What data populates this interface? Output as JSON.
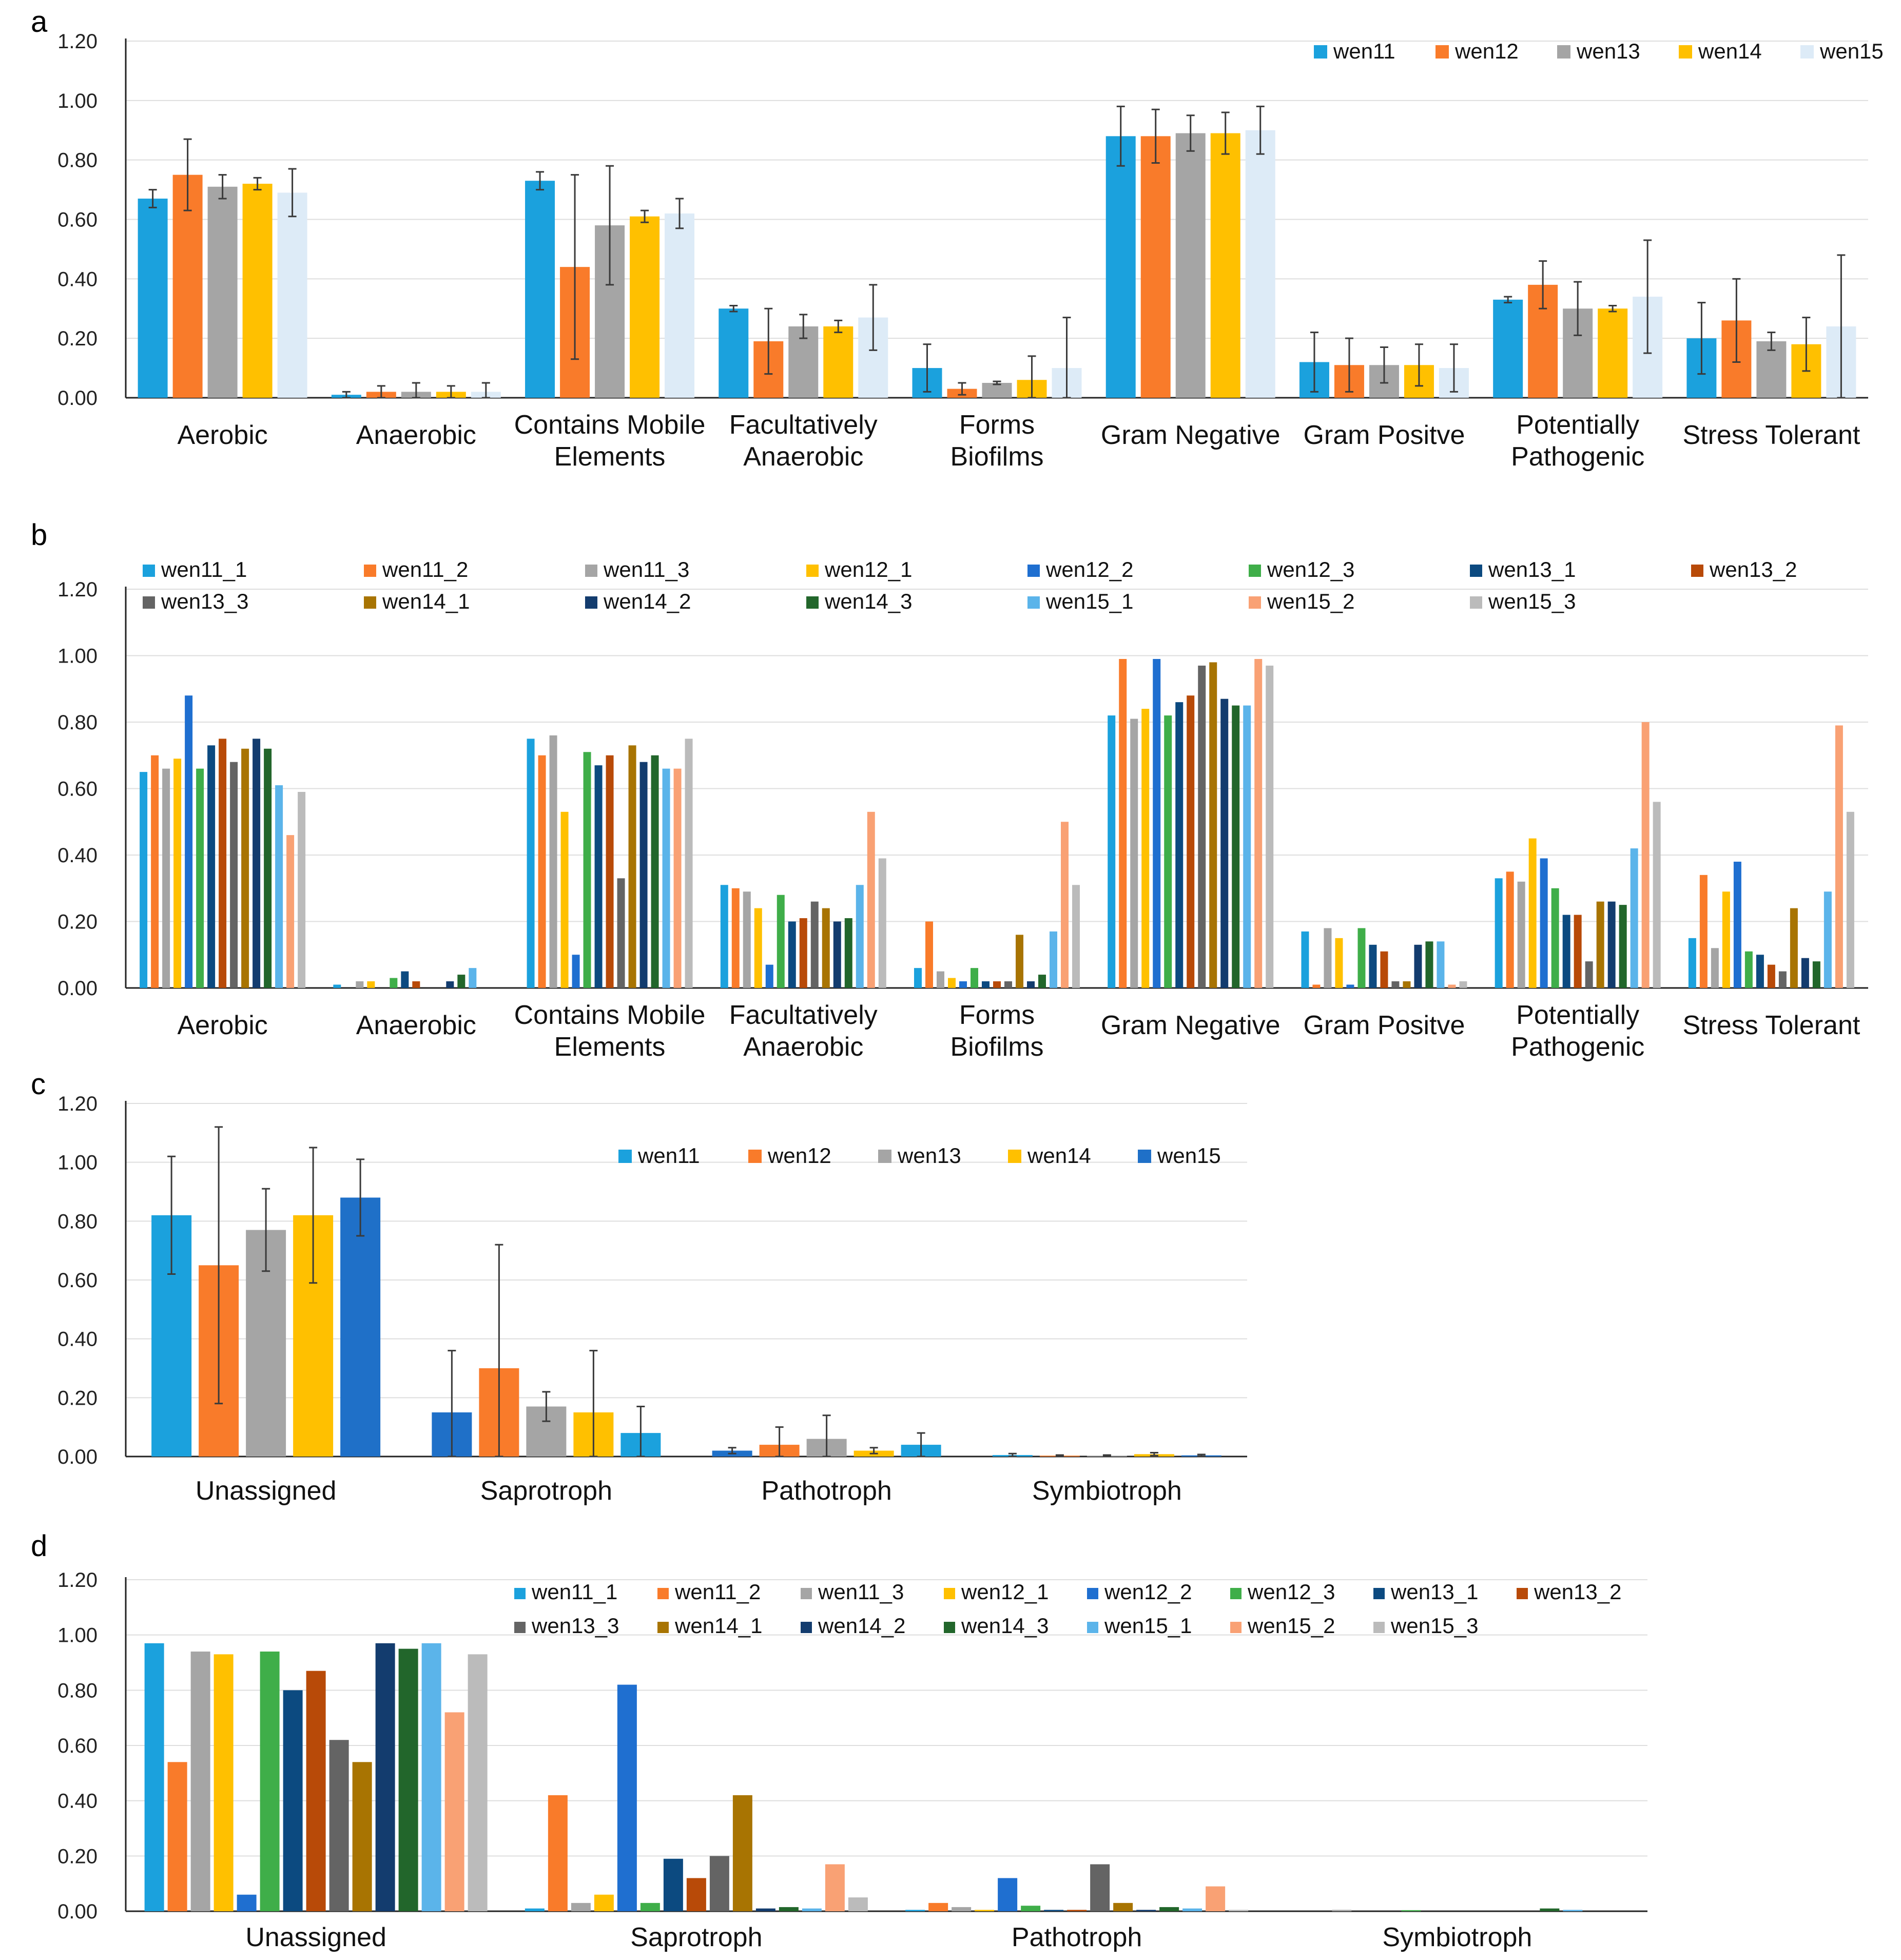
{
  "colors": {
    "wen11": "#1BA1DD",
    "wen12": "#F97B2A",
    "wen13": "#A5A5A5",
    "wen14": "#FFC000",
    "wen15_a": "#DDEBF7",
    "wen15_c": "#1F70C8",
    "wen11_1": "#1BA1DD",
    "wen11_2": "#F97B2A",
    "wen11_3": "#A5A5A5",
    "wen12_1": "#FFC000",
    "wen12_2": "#1F6FD0",
    "wen12_3": "#3FAE49",
    "wen13_1": "#0C4A80",
    "wen13_2": "#B84A08",
    "wen13_3": "#646464",
    "wen14_1": "#A87402",
    "wen14_2": "#133C6E",
    "wen14_3": "#22662B",
    "wen15_1": "#5BB4EA",
    "wen15_2": "#F9A174",
    "wen15_3": "#BBBBBB"
  },
  "chart_data": [
    {
      "panel": "a",
      "type": "bar",
      "ylim": [
        0,
        1.2
      ],
      "ticks": [
        "0.00",
        "0.20",
        "0.40",
        "0.60",
        "0.80",
        "1.00",
        "1.20"
      ],
      "categories": [
        "Aerobic",
        "Anaerobic",
        "Contains Mobile Elements",
        "Facultatively Anaerobic",
        "Forms Biofilms",
        "Gram Negative",
        "Gram Positve",
        "Potentially Pathogenic",
        "Stress Tolerant"
      ],
      "series": [
        {
          "name": "wen11",
          "color": "wen11",
          "values": [
            0.67,
            0.01,
            0.73,
            0.3,
            0.1,
            0.88,
            0.12,
            0.33,
            0.2
          ],
          "errors": [
            0.03,
            0.01,
            0.03,
            0.01,
            0.08,
            0.1,
            0.1,
            0.01,
            0.12
          ]
        },
        {
          "name": "wen12",
          "color": "wen12",
          "values": [
            0.75,
            0.02,
            0.44,
            0.19,
            0.03,
            0.88,
            0.11,
            0.38,
            0.26
          ],
          "errors": [
            0.12,
            0.02,
            0.31,
            0.11,
            0.02,
            0.09,
            0.09,
            0.08,
            0.14
          ]
        },
        {
          "name": "wen13",
          "color": "wen13",
          "values": [
            0.71,
            0.02,
            0.58,
            0.24,
            0.05,
            0.89,
            0.11,
            0.3,
            0.19
          ],
          "errors": [
            0.04,
            0.03,
            0.2,
            0.04,
            0.005,
            0.06,
            0.06,
            0.09,
            0.03
          ]
        },
        {
          "name": "wen14",
          "color": "wen14",
          "values": [
            0.72,
            0.02,
            0.61,
            0.24,
            0.06,
            0.89,
            0.11,
            0.3,
            0.18
          ],
          "errors": [
            0.02,
            0.02,
            0.02,
            0.02,
            0.08,
            0.07,
            0.07,
            0.01,
            0.09
          ]
        },
        {
          "name": "wen15",
          "color": "wen15_a",
          "values": [
            0.69,
            0.02,
            0.62,
            0.27,
            0.1,
            0.9,
            0.1,
            0.34,
            0.24
          ],
          "errors": [
            0.08,
            0.03,
            0.05,
            0.11,
            0.17,
            0.08,
            0.08,
            0.19,
            0.24
          ]
        }
      ]
    },
    {
      "panel": "b",
      "type": "bar",
      "ylim": [
        0,
        1.2
      ],
      "ticks": [
        "0.00",
        "0.20",
        "0.40",
        "0.60",
        "0.80",
        "1.00",
        "1.20"
      ],
      "categories": [
        "Aerobic",
        "Anaerobic",
        "Contains Mobile Elements",
        "Facultatively Anaerobic",
        "Forms Biofilms",
        "Gram Negative",
        "Gram Positve",
        "Potentially Pathogenic",
        "Stress Tolerant"
      ],
      "series": [
        {
          "name": "wen11_1",
          "color": "wen11_1",
          "values": [
            0.65,
            0.01,
            0.75,
            0.31,
            0.06,
            0.82,
            0.17,
            0.33,
            0.15
          ]
        },
        {
          "name": "wen11_2",
          "color": "wen11_2",
          "values": [
            0.7,
            0.0,
            0.7,
            0.3,
            0.2,
            0.99,
            0.01,
            0.35,
            0.34
          ]
        },
        {
          "name": "wen11_3",
          "color": "wen11_3",
          "values": [
            0.66,
            0.02,
            0.76,
            0.29,
            0.05,
            0.81,
            0.18,
            0.32,
            0.12
          ]
        },
        {
          "name": "wen12_1",
          "color": "wen12_1",
          "values": [
            0.69,
            0.02,
            0.53,
            0.24,
            0.03,
            0.84,
            0.15,
            0.45,
            0.29
          ]
        },
        {
          "name": "wen12_2",
          "color": "wen12_2",
          "values": [
            0.88,
            0.0,
            0.1,
            0.07,
            0.02,
            0.99,
            0.01,
            0.39,
            0.38
          ]
        },
        {
          "name": "wen12_3",
          "color": "wen12_3",
          "values": [
            0.66,
            0.03,
            0.71,
            0.28,
            0.06,
            0.82,
            0.18,
            0.3,
            0.11
          ]
        },
        {
          "name": "wen13_1",
          "color": "wen13_1",
          "values": [
            0.73,
            0.05,
            0.67,
            0.2,
            0.02,
            0.86,
            0.13,
            0.22,
            0.1
          ]
        },
        {
          "name": "wen13_2",
          "color": "wen13_2",
          "values": [
            0.75,
            0.02,
            0.7,
            0.21,
            0.02,
            0.88,
            0.11,
            0.22,
            0.07
          ]
        },
        {
          "name": "wen13_3",
          "color": "wen13_3",
          "values": [
            0.68,
            0.0,
            0.33,
            0.26,
            0.02,
            0.97,
            0.02,
            0.08,
            0.05
          ]
        },
        {
          "name": "wen14_1",
          "color": "wen14_1",
          "values": [
            0.72,
            0.0,
            0.73,
            0.24,
            0.16,
            0.98,
            0.02,
            0.26,
            0.24
          ]
        },
        {
          "name": "wen14_2",
          "color": "wen14_2",
          "values": [
            0.75,
            0.02,
            0.68,
            0.2,
            0.02,
            0.87,
            0.13,
            0.26,
            0.09
          ]
        },
        {
          "name": "wen14_3",
          "color": "wen14_3",
          "values": [
            0.72,
            0.04,
            0.7,
            0.21,
            0.04,
            0.85,
            0.14,
            0.25,
            0.08
          ]
        },
        {
          "name": "wen15_1",
          "color": "wen15_1",
          "values": [
            0.61,
            0.06,
            0.66,
            0.31,
            0.17,
            0.85,
            0.14,
            0.42,
            0.29
          ]
        },
        {
          "name": "wen15_2",
          "color": "wen15_2",
          "values": [
            0.46,
            0.0,
            0.66,
            0.53,
            0.5,
            0.99,
            0.01,
            0.8,
            0.79
          ]
        },
        {
          "name": "wen15_3",
          "color": "wen15_3",
          "values": [
            0.59,
            0.0,
            0.75,
            0.39,
            0.31,
            0.97,
            0.02,
            0.56,
            0.53
          ]
        }
      ]
    },
    {
      "panel": "c",
      "type": "bar",
      "ylim": [
        0,
        1.2
      ],
      "ticks": [
        "0.00",
        "0.20",
        "0.40",
        "0.60",
        "0.80",
        "1.00",
        "1.20"
      ],
      "categories": [
        "Unassigned",
        "Saprotroph",
        "Pathotroph",
        "Symbiotroph"
      ],
      "series": [
        {
          "name": "wen11",
          "color": "wen11",
          "colors": [
            "wen11",
            "wen15_c",
            "wen15_c",
            "wen11"
          ],
          "values": [
            0.82,
            0.15,
            0.02,
            0.005
          ],
          "errors": [
            0.2,
            0.21,
            0.01,
            0.005
          ]
        },
        {
          "name": "wen12",
          "color": "wen12",
          "values": [
            0.65,
            0.3,
            0.04,
            0.003
          ],
          "errors": [
            0.47,
            0.42,
            0.06,
            0.002
          ]
        },
        {
          "name": "wen13",
          "color": "wen13",
          "values": [
            0.77,
            0.17,
            0.06,
            0.003
          ],
          "errors": [
            0.14,
            0.05,
            0.08,
            0.002
          ]
        },
        {
          "name": "wen14",
          "color": "wen14",
          "values": [
            0.82,
            0.15,
            0.02,
            0.008
          ],
          "errors": [
            0.23,
            0.21,
            0.01,
            0.005
          ]
        },
        {
          "name": "wen15",
          "color": "wen15_c",
          "colors": [
            "wen15_c",
            "wen11",
            "wen11",
            "wen15_c"
          ],
          "values": [
            0.88,
            0.08,
            0.04,
            0.004
          ],
          "errors": [
            0.13,
            0.09,
            0.04,
            0.003
          ]
        }
      ]
    },
    {
      "panel": "d",
      "type": "bar",
      "ylim": [
        0,
        1.2
      ],
      "ticks": [
        "0.00",
        "0.20",
        "0.40",
        "0.60",
        "0.80",
        "1.00",
        "1.20"
      ],
      "categories": [
        "Unassigned",
        "Saprotroph",
        "Pathotroph",
        "Symbiotroph"
      ],
      "series": [
        {
          "name": "wen11_1",
          "color": "wen11_1",
          "values": [
            0.97,
            0.01,
            0.005,
            0.0
          ]
        },
        {
          "name": "wen11_2",
          "color": "wen11_2",
          "values": [
            0.54,
            0.42,
            0.03,
            0.0
          ]
        },
        {
          "name": "wen11_3",
          "color": "wen11_3",
          "values": [
            0.94,
            0.03,
            0.015,
            0.005
          ]
        },
        {
          "name": "wen12_1",
          "color": "wen12_1",
          "values": [
            0.93,
            0.06,
            0.005,
            0.0
          ]
        },
        {
          "name": "wen12_2",
          "color": "wen12_2",
          "values": [
            0.06,
            0.82,
            0.12,
            0.0
          ]
        },
        {
          "name": "wen12_3",
          "color": "wen12_3",
          "values": [
            0.94,
            0.03,
            0.02,
            0.004
          ]
        },
        {
          "name": "wen13_1",
          "color": "wen13_1",
          "values": [
            0.8,
            0.19,
            0.005,
            0.0
          ]
        },
        {
          "name": "wen13_2",
          "color": "wen13_2",
          "values": [
            0.87,
            0.12,
            0.005,
            0.0
          ]
        },
        {
          "name": "wen13_3",
          "color": "wen13_3",
          "values": [
            0.62,
            0.2,
            0.17,
            0.0
          ]
        },
        {
          "name": "wen14_1",
          "color": "wen14_1",
          "values": [
            0.54,
            0.42,
            0.03,
            0.0
          ]
        },
        {
          "name": "wen14_2",
          "color": "wen14_2",
          "values": [
            0.97,
            0.01,
            0.005,
            0.0
          ]
        },
        {
          "name": "wen14_3",
          "color": "wen14_3",
          "values": [
            0.95,
            0.015,
            0.015,
            0.01
          ]
        },
        {
          "name": "wen15_1",
          "color": "wen15_1",
          "values": [
            0.97,
            0.01,
            0.01,
            0.005
          ]
        },
        {
          "name": "wen15_2",
          "color": "wen15_2",
          "values": [
            0.72,
            0.17,
            0.09,
            0.0
          ]
        },
        {
          "name": "wen15_3",
          "color": "wen15_3",
          "values": [
            0.93,
            0.05,
            0.005,
            0.0
          ]
        }
      ]
    }
  ]
}
